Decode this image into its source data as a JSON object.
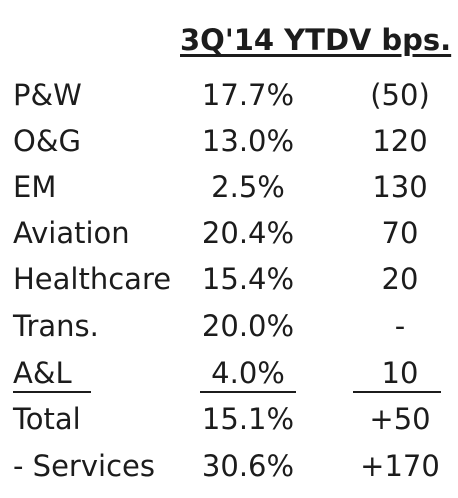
{
  "header": {
    "ytd_label": "3Q'14 YTD",
    "bps_label": "V bps."
  },
  "rows": [
    {
      "segment": "P&W",
      "ytd": "17.7%",
      "bps": "(50)"
    },
    {
      "segment": "O&G",
      "ytd": "13.0%",
      "bps": "120"
    },
    {
      "segment": "EM",
      "ytd": "2.5%",
      "bps": "130"
    },
    {
      "segment": "Aviation",
      "ytd": "20.4%",
      "bps": "70"
    },
    {
      "segment": "Healthcare",
      "ytd": "15.4%",
      "bps": "20"
    },
    {
      "segment": "Trans.",
      "ytd": "20.0%",
      "bps": "-"
    },
    {
      "segment": "A&L",
      "ytd": "4.0%",
      "bps": "10"
    },
    {
      "segment": "Total",
      "ytd": "15.1%",
      "bps": "+50"
    },
    {
      "segment": "- Services",
      "ytd": "30.6%",
      "bps": "+170"
    }
  ]
}
